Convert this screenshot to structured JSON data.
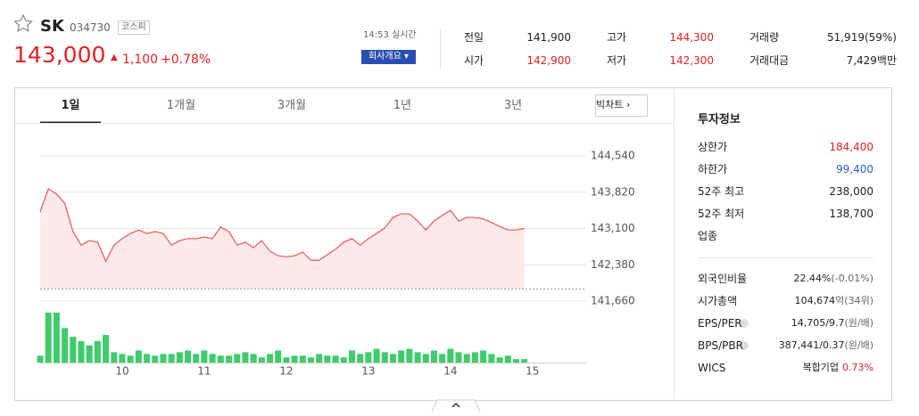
{
  "header": {
    "name": "SK",
    "code": "034730",
    "market": "코스피",
    "price": "143,000",
    "change": "1,100",
    "change_pct": "+0.78%",
    "time": "14:53 실시간",
    "company_button": "회사개요"
  },
  "quote": {
    "rows": [
      [
        "전일",
        "141,900",
        "고가",
        "144,300",
        "거래량",
        "51,919(59%)"
      ],
      [
        "시가",
        "142,900",
        "저가",
        "142,300",
        "거래대금",
        "7,429백만"
      ]
    ]
  },
  "tabs": {
    "items": [
      "1일",
      "1개월",
      "3개월",
      "1년",
      "3년"
    ],
    "big_chart": "빅차트"
  },
  "chart": {
    "type": "line",
    "x": [
      9.0,
      9.1,
      9.2,
      9.3,
      9.4,
      9.5,
      9.6,
      9.7,
      9.8,
      9.9,
      10.0,
      10.1,
      10.2,
      10.3,
      10.4,
      10.5,
      10.6,
      10.7,
      10.8,
      10.9,
      11.0,
      11.1,
      11.2,
      11.3,
      11.4,
      11.5,
      11.6,
      11.7,
      11.8,
      11.9,
      12.0,
      12.1,
      12.2,
      12.3,
      12.4,
      12.5,
      12.6,
      12.7,
      12.8,
      12.9,
      13.0,
      13.1,
      13.2,
      13.3,
      13.4,
      13.5,
      13.6,
      13.7,
      13.8,
      13.9,
      14.0,
      14.1,
      14.2,
      14.3,
      14.4,
      14.5,
      14.6,
      14.7,
      14.8,
      14.9
    ],
    "series": [
      {
        "color": "#f05454",
        "values": [
          143430,
          143890,
          143780,
          143600,
          143040,
          142770,
          142860,
          142830,
          142450,
          142770,
          142900,
          143000,
          143070,
          143000,
          143040,
          143000,
          142770,
          142860,
          142900,
          142900,
          142930,
          142900,
          143130,
          143040,
          142770,
          142830,
          142720,
          142860,
          142650,
          142560,
          142540,
          142560,
          142630,
          142470,
          142470,
          142580,
          142690,
          142830,
          142900,
          142770,
          142900,
          143000,
          143110,
          143320,
          143390,
          143390,
          143250,
          143070,
          143250,
          143360,
          143460,
          143250,
          143320,
          143320,
          143290,
          143220,
          143140,
          143070,
          143070,
          143100
        ]
      },
      {
        "color": "#3ecc6b",
        "axis": "y2",
        "values": [
          8,
          58,
          58,
          40,
          30,
          25,
          20,
          25,
          32,
          12,
          10,
          8,
          14,
          10,
          8,
          10,
          10,
          12,
          14,
          10,
          14,
          10,
          8,
          8,
          10,
          12,
          10,
          6,
          10,
          14,
          6,
          8,
          8,
          6,
          10,
          8,
          8,
          6,
          14,
          10,
          12,
          16,
          12,
          10,
          14,
          16,
          12,
          10,
          14,
          10,
          16,
          12,
          10,
          12,
          14,
          10,
          6,
          8,
          4,
          4
        ]
      }
    ],
    "reference_price": 141900,
    "xlim": [
      9,
      15.6
    ],
    "xticks": [
      10,
      11,
      12,
      13,
      14,
      15
    ],
    "ylim": [
      141660,
      144540
    ],
    "yticks": [
      {
        "value": 141660,
        "label": "141,660"
      },
      {
        "value": 142380,
        "label": "142,380"
      },
      {
        "value": 143100,
        "label": "143,100"
      },
      {
        "value": 143820,
        "label": "143,820"
      },
      {
        "value": 144540,
        "label": "144,540"
      }
    ],
    "y2lim": [
      0,
      60
    ],
    "grid": true
  },
  "info": {
    "title": "투자정보",
    "rows": [
      [
        "상한가",
        "184,400"
      ],
      [
        "하한가",
        "99,400"
      ],
      [
        "52주 최고",
        "238,000"
      ],
      [
        "52주 최저",
        "138,700"
      ],
      [
        "업종"
      ]
    ],
    "rows2": [
      [
        "외국인비율",
        "22.44%",
        "(-0.01%)"
      ],
      [
        "시가총액",
        "104,674",
        "억(34위)"
      ],
      [
        "EPS/PER",
        "14,705/9.7",
        "(원/배)"
      ],
      [
        "BPS/PBR",
        "387,441/0.37",
        "(원/배)"
      ],
      [
        "WICS",
        "복합기업",
        "0.73%"
      ]
    ]
  }
}
